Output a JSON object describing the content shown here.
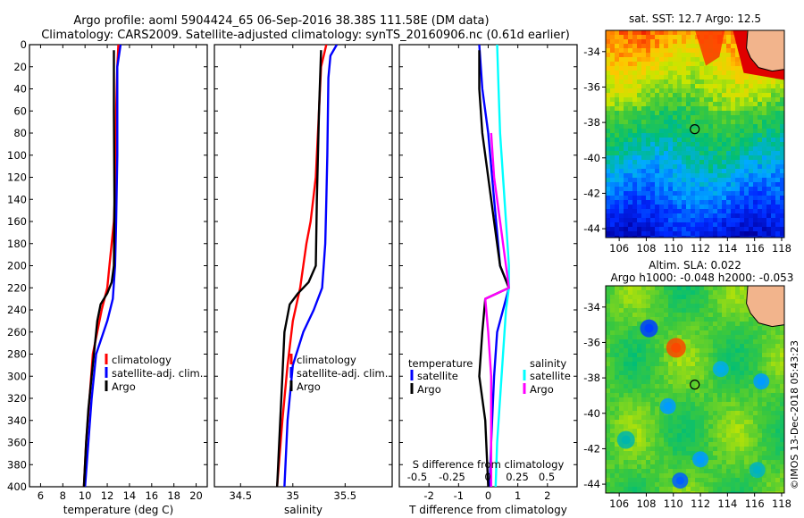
{
  "header": {
    "title_line1": "Argo profile: aoml 5904424_65 06-Sep-2016 38.38S 111.58E (DM data)",
    "title_line2": "Climatology: CARS2009. Satellite-adjusted climatology: synTS_20160906.nc (0.61d earlier)"
  },
  "colors": {
    "climatology": "#ff0000",
    "satellite": "#0000ff",
    "argo": "#000000",
    "sat_salinity": "#00ffff",
    "argo_salinity": "#ff00ff",
    "land": "#f2b48c"
  },
  "watermark": "©IMOS 13-Dec-2018 05:43:23",
  "chart_data": [
    {
      "id": "temperature",
      "type": "line",
      "xlabel": "temperature (deg C)",
      "ylabel": "",
      "xlim": [
        5,
        21
      ],
      "ylim": [
        0,
        400
      ],
      "x_ticks": [
        6,
        8,
        10,
        12,
        14,
        16,
        18,
        20
      ],
      "y_ticks": [
        0,
        20,
        40,
        60,
        80,
        100,
        120,
        140,
        160,
        180,
        200,
        220,
        240,
        260,
        280,
        300,
        320,
        340,
        360,
        380,
        400
      ],
      "legend": [
        "climatology",
        "satellite-adj. clim.",
        "Argo"
      ],
      "series": [
        {
          "name": "climatology",
          "color": "#ff0000",
          "points": [
            [
              13.0,
              0
            ],
            [
              12.9,
              20
            ],
            [
              12.8,
              60
            ],
            [
              12.75,
              120
            ],
            [
              12.6,
              160
            ],
            [
              12.4,
              180
            ],
            [
              12.2,
              200
            ],
            [
              12.0,
              220
            ],
            [
              11.5,
              240
            ],
            [
              10.7,
              280
            ],
            [
              10.4,
              320
            ],
            [
              10.1,
              360
            ],
            [
              9.9,
              400
            ]
          ]
        },
        {
          "name": "satellite-adj. clim.",
          "color": "#0000ff",
          "points": [
            [
              13.2,
              0
            ],
            [
              12.9,
              20
            ],
            [
              12.9,
              100
            ],
            [
              12.8,
              160
            ],
            [
              12.7,
              200
            ],
            [
              12.5,
              230
            ],
            [
              12.0,
              250
            ],
            [
              11.0,
              280
            ],
            [
              10.6,
              320
            ],
            [
              10.3,
              360
            ],
            [
              10.0,
              400
            ]
          ]
        },
        {
          "name": "Argo",
          "color": "#000000",
          "points": [
            [
              12.6,
              5
            ],
            [
              12.6,
              60
            ],
            [
              12.65,
              140
            ],
            [
              12.6,
              200
            ],
            [
              12.4,
              215
            ],
            [
              12.0,
              225
            ],
            [
              11.4,
              235
            ],
            [
              11.1,
              250
            ],
            [
              10.9,
              270
            ],
            [
              10.6,
              300
            ],
            [
              10.3,
              330
            ],
            [
              10.1,
              360
            ],
            [
              9.9,
              400
            ]
          ]
        }
      ]
    },
    {
      "id": "salinity",
      "type": "line",
      "xlabel": "salinity",
      "ylabel": "",
      "xlim": [
        34.25,
        35.95
      ],
      "ylim": [
        0,
        400
      ],
      "x_ticks": [
        34.5,
        35,
        35.5
      ],
      "legend": [
        "climatology",
        "satellite-adj. clim.",
        "Argo"
      ],
      "series": [
        {
          "name": "climatology",
          "color": "#ff0000",
          "points": [
            [
              35.32,
              0
            ],
            [
              35.27,
              20
            ],
            [
              35.25,
              60
            ],
            [
              35.22,
              120
            ],
            [
              35.17,
              160
            ],
            [
              35.13,
              180
            ],
            [
              35.1,
              200
            ],
            [
              35.07,
              220
            ],
            [
              35.0,
              250
            ],
            [
              34.95,
              290
            ],
            [
              34.9,
              340
            ],
            [
              34.85,
              400
            ]
          ]
        },
        {
          "name": "satellite-adj. clim.",
          "color": "#0000ff",
          "points": [
            [
              35.42,
              0
            ],
            [
              35.36,
              10
            ],
            [
              35.34,
              30
            ],
            [
              35.33,
              100
            ],
            [
              35.32,
              140
            ],
            [
              35.31,
              180
            ],
            [
              35.28,
              220
            ],
            [
              35.2,
              240
            ],
            [
              35.1,
              260
            ],
            [
              35.0,
              290
            ],
            [
              34.95,
              340
            ],
            [
              34.92,
              400
            ]
          ]
        },
        {
          "name": "Argo",
          "color": "#000000",
          "points": [
            [
              35.27,
              5
            ],
            [
              35.25,
              60
            ],
            [
              35.23,
              140
            ],
            [
              35.22,
              200
            ],
            [
              35.15,
              215
            ],
            [
              35.05,
              225
            ],
            [
              34.97,
              235
            ],
            [
              34.92,
              260
            ],
            [
              34.9,
              300
            ],
            [
              34.88,
              340
            ],
            [
              34.85,
              400
            ]
          ]
        }
      ]
    },
    {
      "id": "differences",
      "type": "line",
      "xlabel": "T difference from climatology",
      "xlabel_top": "S difference from climatology",
      "xlim": [
        -3,
        3
      ],
      "ylim": [
        0,
        400
      ],
      "x_ticks": [
        -2,
        -1,
        0,
        1,
        2
      ],
      "x_ticks_s": [
        "-0.5",
        "-0.25",
        "0",
        "0.25",
        "0.5"
      ],
      "legend_left_title": "temperature",
      "legend_right_title": "salinity",
      "legend": [
        "satellite",
        "Argo",
        "satellite",
        "Argo"
      ],
      "series": [
        {
          "name": "temperature satellite",
          "color": "#0000ff",
          "points": [
            [
              -0.3,
              0
            ],
            [
              -0.2,
              40
            ],
            [
              0,
              80
            ],
            [
              0.2,
              140
            ],
            [
              0.4,
              200
            ],
            [
              0.7,
              220
            ],
            [
              0.5,
              240
            ],
            [
              0.3,
              260
            ],
            [
              0.2,
              300
            ],
            [
              0.1,
              360
            ],
            [
              0.05,
              400
            ]
          ]
        },
        {
          "name": "temperature Argo",
          "color": "#000000",
          "points": [
            [
              -0.3,
              5
            ],
            [
              -0.3,
              40
            ],
            [
              -0.2,
              80
            ],
            [
              0.0,
              120
            ],
            [
              0.2,
              160
            ],
            [
              0.4,
              200
            ],
            [
              0.7,
              220
            ],
            [
              -0.1,
              230
            ],
            [
              -0.2,
              260
            ],
            [
              -0.3,
              300
            ],
            [
              -0.1,
              340
            ],
            [
              0,
              400
            ]
          ]
        },
        {
          "name": "salinity satellite",
          "color": "#00ffff",
          "points": [
            [
              0.3,
              0
            ],
            [
              0.35,
              40
            ],
            [
              0.4,
              80
            ],
            [
              0.5,
              120
            ],
            [
              0.6,
              160
            ],
            [
              0.7,
              200
            ],
            [
              0.7,
              220
            ],
            [
              0.6,
              240
            ],
            [
              0.5,
              280
            ],
            [
              0.4,
              320
            ],
            [
              0.3,
              360
            ],
            [
              0.25,
              400
            ]
          ]
        },
        {
          "name": "salinity Argo",
          "color": "#ff00ff",
          "points": [
            [
              0.1,
              80
            ],
            [
              0.2,
              120
            ],
            [
              0.4,
              160
            ],
            [
              0.6,
              200
            ],
            [
              0.7,
              220
            ],
            [
              -0.1,
              230
            ],
            [
              0.0,
              260
            ],
            [
              0.1,
              300
            ],
            [
              0.1,
              340
            ],
            [
              0.1,
              400
            ]
          ]
        }
      ]
    },
    {
      "id": "sst_map",
      "type": "heatmap",
      "title": "sat. SST: 12.7 Argo: 12.5",
      "x_ticks": [
        "106",
        "108",
        "110",
        "112",
        "114",
        "116",
        "118"
      ],
      "y_ticks": [
        "-34",
        "-36",
        "-38",
        "-40",
        "-42",
        "-44"
      ],
      "xlim": [
        105,
        118.2
      ],
      "ylim": [
        -44.5,
        -32.8
      ],
      "marker": [
        111.58,
        -38.38
      ]
    },
    {
      "id": "sla_map",
      "type": "heatmap",
      "title": "Altim. SLA: 0.022",
      "subtitle": "Argo h1000: -0.048 h2000: -0.053",
      "x_ticks": [
        "106",
        "108",
        "110",
        "112",
        "114",
        "116",
        "118"
      ],
      "y_ticks": [
        "-34",
        "-36",
        "-38",
        "-40",
        "-42",
        "-44"
      ],
      "xlim": [
        105,
        118.2
      ],
      "ylim": [
        -44.5,
        -32.8
      ],
      "marker": [
        111.58,
        -38.38
      ]
    }
  ]
}
